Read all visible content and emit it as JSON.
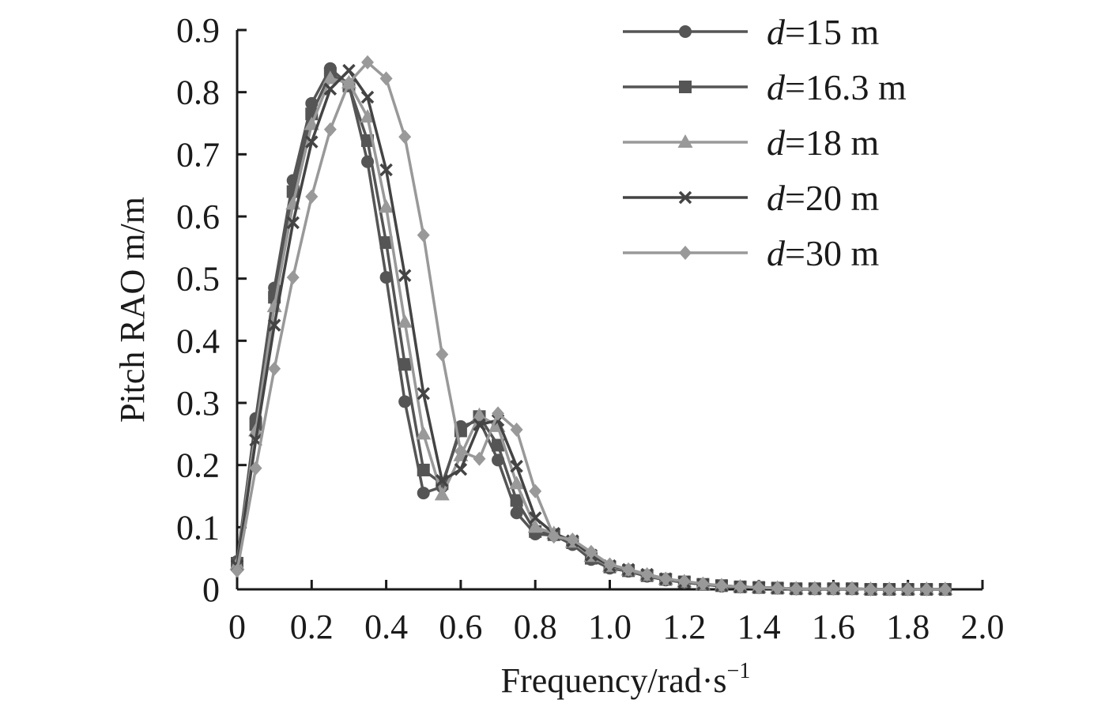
{
  "chart_data": {
    "type": "line",
    "title": "",
    "xlabel": "Frequency/rad·s",
    "xlabel_sup": "−1",
    "ylabel": "Pitch RAO m/m",
    "xlim": [
      0,
      2.0
    ],
    "ylim": [
      0,
      0.9
    ],
    "xticks": [
      "0",
      "0.2",
      "0.4",
      "0.6",
      "0.8",
      "1.0",
      "1.2",
      "1.4",
      "1.6",
      "1.8",
      "2.0"
    ],
    "yticks": [
      "0",
      "0.1",
      "0.2",
      "0.3",
      "0.4",
      "0.5",
      "0.6",
      "0.7",
      "0.8",
      "0.9"
    ],
    "grid": false,
    "legend_position": "top-right",
    "x": [
      0,
      0.05,
      0.1,
      0.15,
      0.2,
      0.25,
      0.3,
      0.35,
      0.4,
      0.45,
      0.5,
      0.55,
      0.6,
      0.65,
      0.7,
      0.75,
      0.8,
      0.85,
      0.9,
      0.95,
      1.0,
      1.05,
      1.1,
      1.15,
      1.2,
      1.25,
      1.3,
      1.35,
      1.4,
      1.45,
      1.5,
      1.55,
      1.6,
      1.65,
      1.7,
      1.75,
      1.8,
      1.85,
      1.9
    ],
    "series": [
      {
        "italic": "d",
        "name": "=15 m",
        "marker": "circle",
        "color": "#555555",
        "values": [
          0.045,
          0.275,
          0.485,
          0.658,
          0.782,
          0.838,
          0.812,
          0.688,
          0.502,
          0.302,
          0.155,
          0.165,
          0.262,
          0.272,
          0.208,
          0.123,
          0.089,
          0.087,
          0.072,
          0.048,
          0.034,
          0.029,
          0.021,
          0.015,
          0.011,
          0.008,
          0.005,
          0.004,
          0.003,
          0.002,
          0.001,
          0.001,
          0.001,
          0.001,
          0.0,
          0.0,
          0.0,
          0.0,
          0.0
        ]
      },
      {
        "italic": "d",
        "name": "=16.3 m",
        "marker": "square",
        "color": "#555555",
        "values": [
          0.042,
          0.265,
          0.47,
          0.64,
          0.765,
          0.83,
          0.81,
          0.722,
          0.558,
          0.362,
          0.192,
          0.17,
          0.255,
          0.278,
          0.232,
          0.143,
          0.093,
          0.088,
          0.075,
          0.05,
          0.036,
          0.03,
          0.022,
          0.016,
          0.012,
          0.008,
          0.006,
          0.004,
          0.003,
          0.002,
          0.001,
          0.001,
          0.001,
          0.001,
          0.0,
          0.0,
          0.0,
          0.0,
          0.0
        ]
      },
      {
        "italic": "d",
        "name": "=18 m",
        "marker": "triangle",
        "color": "#999999",
        "values": [
          0.04,
          0.255,
          0.455,
          0.62,
          0.748,
          0.822,
          0.815,
          0.76,
          0.615,
          0.43,
          0.25,
          0.152,
          0.215,
          0.28,
          0.262,
          0.17,
          0.1,
          0.09,
          0.076,
          0.053,
          0.037,
          0.031,
          0.023,
          0.016,
          0.012,
          0.008,
          0.006,
          0.004,
          0.003,
          0.002,
          0.001,
          0.001,
          0.001,
          0.001,
          0.0,
          0.0,
          0.0,
          0.0,
          0.0
        ]
      },
      {
        "italic": "d",
        "name": "=20 m",
        "marker": "x",
        "color": "#444444",
        "values": [
          0.038,
          0.24,
          0.425,
          0.59,
          0.72,
          0.805,
          0.835,
          0.792,
          0.675,
          0.505,
          0.315,
          0.175,
          0.193,
          0.265,
          0.272,
          0.198,
          0.115,
          0.09,
          0.078,
          0.055,
          0.038,
          0.032,
          0.024,
          0.017,
          0.012,
          0.008,
          0.006,
          0.004,
          0.003,
          0.002,
          0.001,
          0.001,
          0.001,
          0.001,
          0.0,
          0.0,
          0.0,
          0.0,
          0.0
        ]
      },
      {
        "italic": "d",
        "name": "=30 m",
        "marker": "diamond",
        "color": "#999999",
        "values": [
          0.03,
          0.195,
          0.355,
          0.502,
          0.632,
          0.74,
          0.815,
          0.848,
          0.822,
          0.728,
          0.57,
          0.378,
          0.222,
          0.21,
          0.283,
          0.257,
          0.158,
          0.085,
          0.08,
          0.06,
          0.04,
          0.032,
          0.024,
          0.017,
          0.013,
          0.009,
          0.006,
          0.004,
          0.003,
          0.002,
          0.001,
          0.001,
          0.001,
          0.001,
          0.0,
          0.0,
          0.0,
          0.0,
          0.0
        ]
      }
    ]
  }
}
